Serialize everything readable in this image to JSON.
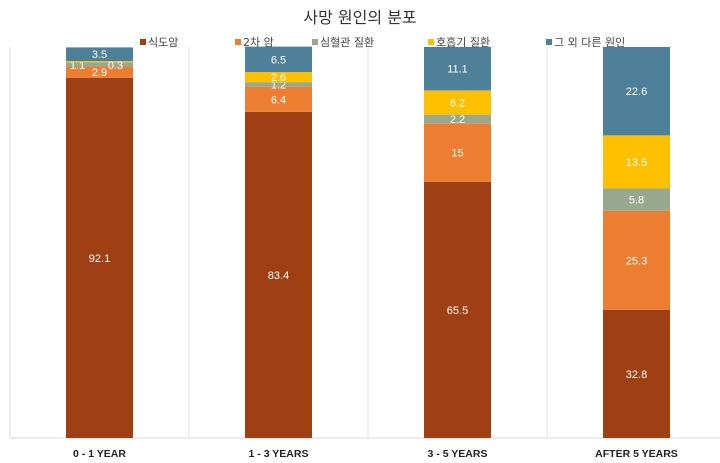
{
  "chart_data": {
    "type": "bar",
    "stacked": true,
    "title": "사망 원인의 분포",
    "categories": [
      "0 - 1 YEAR",
      "1 - 3 YEARS",
      "3 - 5 YEARS",
      "AFTER 5 YEARS"
    ],
    "series": [
      {
        "name": "식도암",
        "color": "#9E3F14",
        "values": [
          92.1,
          83.4,
          65.5,
          32.8
        ]
      },
      {
        "name": "2차 암",
        "color": "#ED7D31",
        "values": [
          2.9,
          6.4,
          15,
          25.3
        ]
      },
      {
        "name": "심혈관 질환",
        "color": "#97A88F",
        "values": [
          1.1,
          1.2,
          2.2,
          5.8
        ]
      },
      {
        "name": "호흡기 질환",
        "color": "#FFC000",
        "values": [
          0.3,
          2.6,
          6.2,
          13.5
        ]
      },
      {
        "name": "그 외 다른 원인",
        "color": "#4E8199",
        "values": [
          3.5,
          6.5,
          11.1,
          22.6
        ]
      }
    ],
    "ylim": [
      0,
      100
    ],
    "legend": "top",
    "grid": "vertical category separators"
  }
}
